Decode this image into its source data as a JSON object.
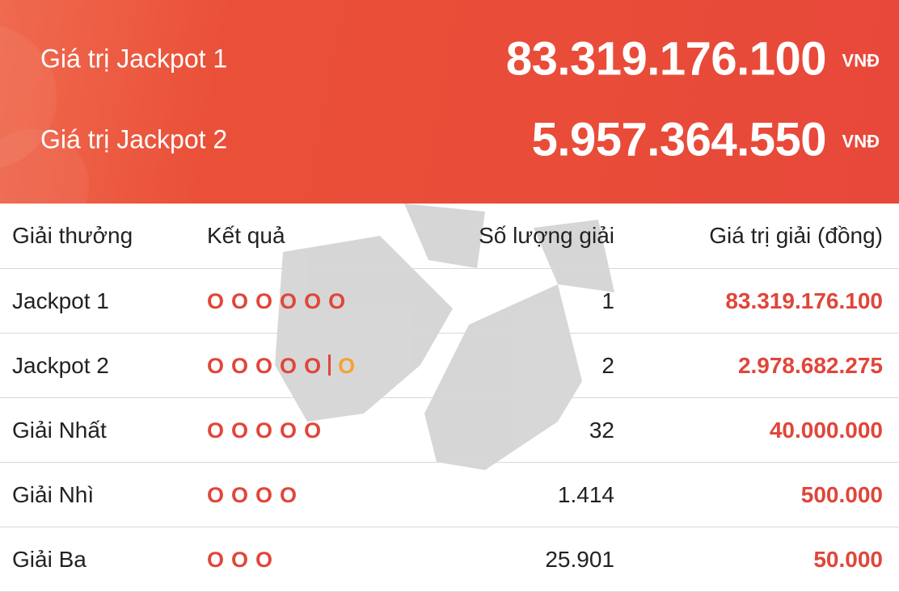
{
  "header": {
    "jackpots": [
      {
        "label": "Giá trị Jackpot 1",
        "value": "83.319.176.100",
        "unit": "VNĐ"
      },
      {
        "label": "Giá trị Jackpot 2",
        "value": "5.957.364.550",
        "unit": "VNĐ"
      }
    ]
  },
  "table": {
    "columns": [
      "Giải thưởng",
      "Kết quả",
      "Số lượng giải",
      "Giá trị giải (đồng)"
    ],
    "rows": [
      {
        "prize": "Jackpot 1",
        "result": [
          "O",
          "O",
          "O",
          "O",
          "O",
          "O"
        ],
        "count": "1",
        "amount": "83.319.176.100"
      },
      {
        "prize": "Jackpot 2",
        "result": [
          "O",
          "O",
          "O",
          "O",
          "O"
        ],
        "bonus": "O",
        "count": "2",
        "amount": "2.978.682.275"
      },
      {
        "prize": "Giải Nhất",
        "result": [
          "O",
          "O",
          "O",
          "O",
          "O"
        ],
        "count": "32",
        "amount": "40.000.000"
      },
      {
        "prize": "Giải Nhì",
        "result": [
          "O",
          "O",
          "O",
          "O"
        ],
        "count": "1.414",
        "amount": "500.000"
      },
      {
        "prize": "Giải Ba",
        "result": [
          "O",
          "O",
          "O"
        ],
        "count": "25.901",
        "amount": "50.000"
      }
    ]
  }
}
